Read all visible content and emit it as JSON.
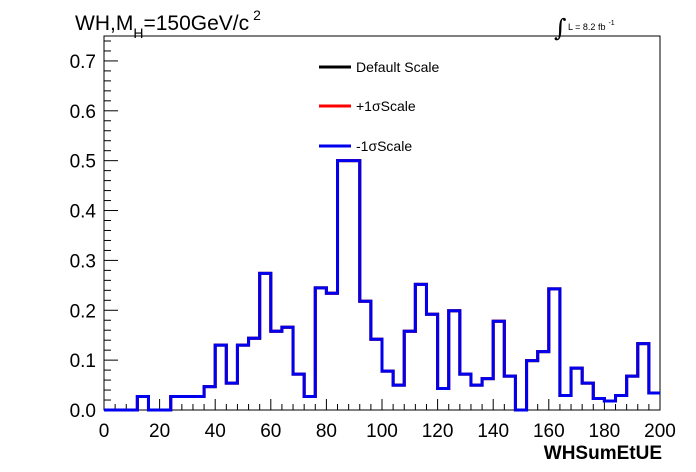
{
  "chart_data": {
    "type": "line",
    "title": "",
    "xlabel": "WHSumEtUE",
    "ylabel": "",
    "xlim": [
      0,
      200
    ],
    "ylim": [
      0,
      0.75
    ],
    "grid": false,
    "legend_position": "top-center",
    "bin_width": 4,
    "bin_edges_start": 0,
    "x_ticks": [
      "0",
      "20",
      "40",
      "60",
      "80",
      "100",
      "120",
      "140",
      "160",
      "180",
      "200"
    ],
    "y_ticks": [
      "0.0",
      "0.1",
      "0.2",
      "0.3",
      "0.4",
      "0.5",
      "0.6",
      "0.7"
    ],
    "series": [
      {
        "name": "Default Scale",
        "color": "#000000",
        "values": [
          0,
          0,
          0,
          0.027,
          0,
          0,
          0.027,
          0.027,
          0.027,
          0.047,
          0.13,
          0.054,
          0.13,
          0.144,
          0.274,
          0.158,
          0.166,
          0.072,
          0.027,
          0.245,
          0.234,
          0.5,
          0.5,
          0.218,
          0.142,
          0.078,
          0.05,
          0.158,
          0.252,
          0.192,
          0.043,
          0.199,
          0.072,
          0.05,
          0.063,
          0.178,
          0.068,
          0,
          0.099,
          0.117,
          0.243,
          0.029,
          0.084,
          0.054,
          0.023,
          0.018,
          0.029,
          0.068,
          0.133,
          0.034
        ]
      },
      {
        "name": "+1σScale",
        "color": "#ff0000",
        "values": [
          0,
          0,
          0,
          0.027,
          0,
          0,
          0.027,
          0.027,
          0.027,
          0.047,
          0.13,
          0.054,
          0.13,
          0.144,
          0.274,
          0.158,
          0.166,
          0.072,
          0.027,
          0.245,
          0.234,
          0.5,
          0.5,
          0.218,
          0.142,
          0.078,
          0.05,
          0.158,
          0.252,
          0.192,
          0.043,
          0.199,
          0.072,
          0.05,
          0.063,
          0.178,
          0.068,
          0,
          0.099,
          0.117,
          0.243,
          0.029,
          0.084,
          0.054,
          0.023,
          0.018,
          0.029,
          0.068,
          0.133,
          0.034
        ]
      },
      {
        "name": "-1σScale",
        "color": "#0000ee",
        "values": [
          0,
          0,
          0,
          0.027,
          0,
          0,
          0.027,
          0.027,
          0.027,
          0.047,
          0.13,
          0.054,
          0.13,
          0.144,
          0.274,
          0.158,
          0.166,
          0.072,
          0.027,
          0.245,
          0.234,
          0.5,
          0.5,
          0.218,
          0.142,
          0.078,
          0.05,
          0.158,
          0.252,
          0.192,
          0.043,
          0.199,
          0.072,
          0.05,
          0.063,
          0.178,
          0.068,
          0,
          0.099,
          0.117,
          0.243,
          0.029,
          0.084,
          0.054,
          0.023,
          0.018,
          0.029,
          0.068,
          0.133,
          0.034
        ]
      }
    ],
    "annotations": {
      "title_main": "WH,M",
      "title_sub": "H",
      "title_rest": "=150GeV/c",
      "title_sup": "2",
      "lumi_integral": "∫",
      "lumi_text": "L = 8.2 fb",
      "lumi_sup": "-1"
    }
  }
}
